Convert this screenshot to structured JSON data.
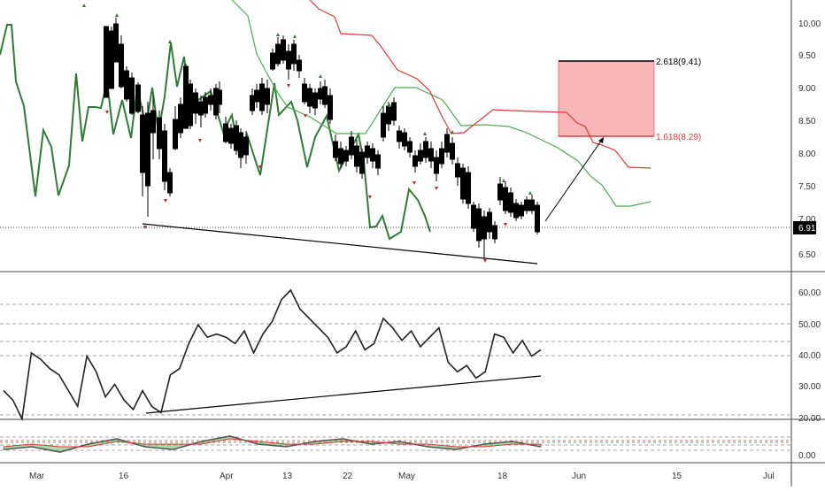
{
  "price_scale": {
    "ticks": [
      "10.00",
      "9.50",
      "9.00",
      "8.50",
      "8.00",
      "7.50",
      "7.00",
      "6.50"
    ],
    "last_price": "6.91",
    "up_color": "#000000",
    "down_color": "#000000"
  },
  "rsi_scale": {
    "ticks": [
      "60.00",
      "50.00",
      "40.00",
      "30.00",
      "20.00"
    ]
  },
  "stoch_scale": {
    "ticks": [
      "0.00"
    ]
  },
  "time_axis": {
    "labels": [
      "Mar",
      "16",
      "Apr",
      "13",
      "22",
      "May",
      "18",
      "Jun",
      "15",
      "Jul"
    ]
  },
  "annotations": {
    "fib_high": "2.618(9.41)",
    "fib_low": "1.618(8.29)",
    "target_box_color": "#f7a9ab",
    "fib_high_color": "#000000",
    "fib_low_color": "#e53935"
  },
  "chart_data": [
    {
      "type": "candlestick",
      "title": "",
      "ylim": [
        6.2,
        10.4
      ],
      "x": [
        "Mar",
        "16",
        "Apr",
        "13",
        "22",
        "May",
        "18",
        "Jun",
        "15",
        "Jul"
      ],
      "close_series_sample": [
        {
          "x": "Mar",
          "y": 9.0
        },
        {
          "x": "16",
          "y": 7.7
        },
        {
          "x": "Apr",
          "y": 8.6
        },
        {
          "x": "13",
          "y": 9.6
        },
        {
          "x": "22",
          "y": 8.1
        },
        {
          "x": "May",
          "y": 8.5
        },
        {
          "x": "18",
          "y": 7.2
        },
        {
          "x": "last",
          "y": 6.91
        }
      ],
      "overlays": [
        {
          "name": "",
          "color": "#2e7d32",
          "values": [
            9.7,
            9.3,
            9.0,
            8.2,
            7.6,
            8.6,
            7.4,
            8.9,
            9.1,
            8.0,
            7.2,
            8.3,
            7.8,
            7.6,
            7.1,
            7.4,
            7.2,
            7.0
          ]
        },
        {
          "name": "",
          "color": "#4caf50",
          "values": [
            9.6,
            9.1,
            8.4,
            8.7,
            8.5,
            8.1,
            7.6,
            7.3
          ]
        },
        {
          "name": "",
          "color": "#e53935",
          "values": [
            10.4,
            9.9,
            9.4,
            8.6,
            8.6,
            8.2,
            7.8
          ]
        }
      ],
      "trendline": {
        "from": {
          "x": "16",
          "y": 6.95
        },
        "to": {
          "x": "18",
          "y": 6.4
        }
      },
      "projection": {
        "from": 6.91,
        "to": 8.29
      },
      "target_zone": [
        8.29,
        9.41
      ],
      "last_price": 6.91
    },
    {
      "type": "line",
      "title": "",
      "ylim": [
        20,
        62
      ],
      "y_ticks": [
        60,
        50,
        40,
        30,
        20
      ],
      "values": [
        29,
        26,
        20,
        41,
        39,
        36,
        34,
        29,
        24,
        40,
        35,
        27,
        31,
        26,
        23,
        29,
        24,
        22,
        34,
        36,
        44,
        50,
        46,
        47,
        46,
        44,
        48,
        41,
        47,
        51,
        58,
        61,
        55,
        52,
        49,
        46,
        41,
        43,
        48,
        42,
        44,
        52,
        49,
        45,
        48,
        43,
        46,
        49,
        38,
        35,
        37,
        33,
        35,
        47,
        46,
        41,
        45,
        40,
        42
      ],
      "trendline": [
        22,
        33
      ]
    },
    {
      "type": "line",
      "title": "",
      "y_ticks": [
        0
      ],
      "series": [
        {
          "name": "",
          "values": [
            2,
            3,
            1,
            4,
            6,
            3,
            2,
            5,
            7,
            4,
            3,
            5,
            6,
            4,
            5,
            3,
            2,
            4,
            5,
            3
          ]
        },
        {
          "name": "",
          "values": [
            3,
            4,
            3,
            3,
            5,
            4,
            4,
            4,
            6,
            5,
            4,
            4,
            5,
            5,
            4,
            4,
            3,
            3,
            4,
            4
          ]
        }
      ]
    }
  ]
}
